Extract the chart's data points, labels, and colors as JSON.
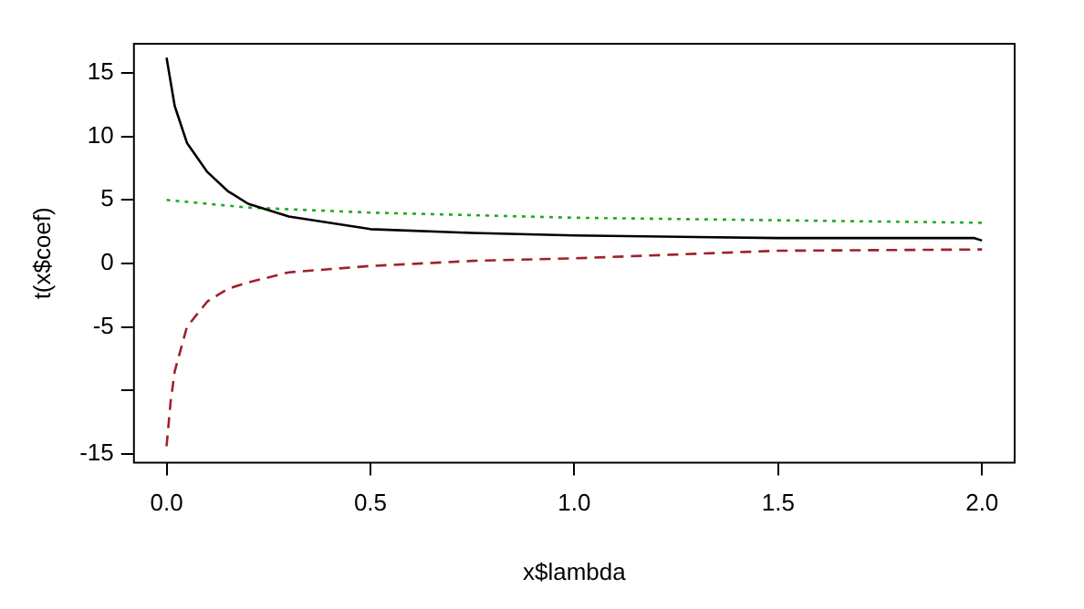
{
  "chart_data": {
    "type": "line",
    "xlabel": "x$lambda",
    "ylabel": "t(x$coef)",
    "xlim": [
      -0.08,
      2.08
    ],
    "ylim": [
      -15.7,
      17.3
    ],
    "xticks": [
      {
        "value": 0,
        "label": "0.0"
      },
      0.5,
      {
        "value": 1,
        "label": "1.0"
      },
      1.5,
      {
        "value": 2,
        "label": "2.0"
      }
    ],
    "yticks": [
      -15,
      {
        "value": -10,
        "label": null
      },
      -5,
      0,
      5,
      10,
      15
    ],
    "grid": false,
    "legend": false,
    "marker": "none",
    "series": [
      {
        "color": "#000000",
        "line_style": "solid",
        "x": [
          0,
          0.02,
          0.05,
          0.1,
          0.15,
          0.2,
          0.3,
          0.5,
          0.75,
          1.0,
          1.5,
          1.98,
          2.0
        ],
        "values": [
          16.2,
          12.4,
          9.5,
          7.2,
          5.7,
          4.7,
          3.7,
          2.7,
          2.4,
          2.2,
          2.0,
          2.0,
          1.8
        ]
      },
      {
        "color": "#22aa22",
        "line_style": "dotted",
        "x": [
          0,
          0.2,
          0.5,
          1.0,
          1.5,
          2.0
        ],
        "values": [
          5.0,
          4.4,
          4.0,
          3.6,
          3.4,
          3.2
        ]
      },
      {
        "color": "#a0202a",
        "line_style": "dashed",
        "x": [
          0,
          0.01,
          0.02,
          0.05,
          0.1,
          0.15,
          0.2,
          0.3,
          0.5,
          0.75,
          1.0,
          1.5,
          2.0
        ],
        "values": [
          -14.4,
          -10.9,
          -8.5,
          -5.0,
          -3.0,
          -2.0,
          -1.5,
          -0.7,
          -0.2,
          0.2,
          0.4,
          1.0,
          1.1
        ]
      }
    ]
  }
}
